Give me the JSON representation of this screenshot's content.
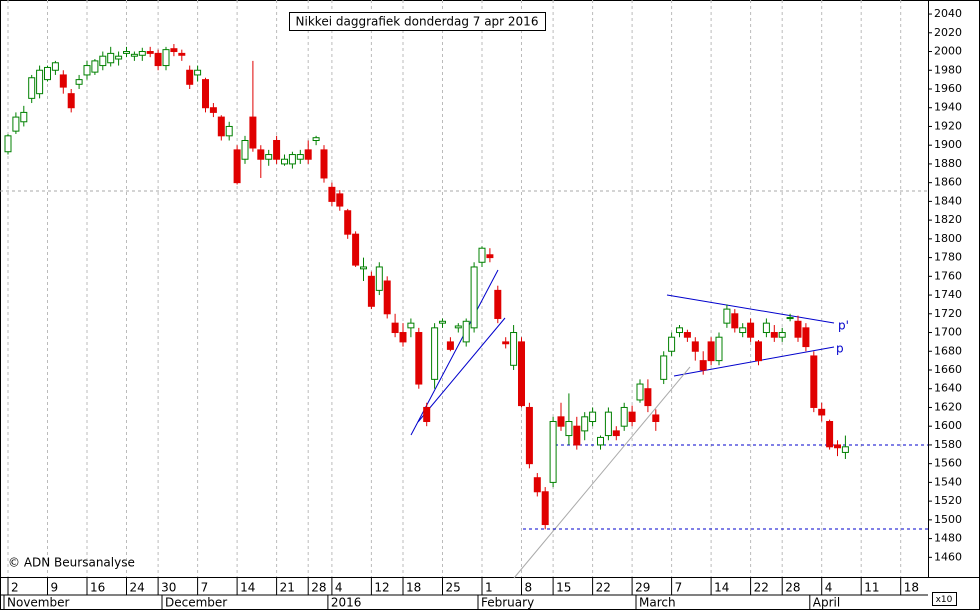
{
  "chart_data": {
    "type": "candlestick",
    "title": "Nikkei daggrafiek donderdag 7 apr 2016",
    "copyright": "© ADN Beursanalyse",
    "y_multiplier": "x10",
    "annotations": [
      "p'",
      "p"
    ],
    "up_color": "#008000",
    "down_color": "#e00000",
    "grid": true,
    "ylim": [
      1439,
      2055
    ],
    "yticks": [
      1460,
      1480,
      1500,
      1520,
      1540,
      1560,
      1580,
      1600,
      1620,
      1640,
      1660,
      1680,
      1700,
      1720,
      1740,
      1760,
      1780,
      1800,
      1820,
      1840,
      1860,
      1880,
      1900,
      1920,
      1940,
      1960,
      1980,
      2000,
      2020,
      2040
    ],
    "categories": [
      "2",
      null,
      null,
      null,
      null,
      "9",
      null,
      null,
      null,
      null,
      "16",
      null,
      null,
      null,
      null,
      "24",
      null,
      null,
      null,
      "30",
      null,
      null,
      null,
      null,
      "7",
      null,
      null,
      null,
      null,
      "14",
      null,
      null,
      null,
      null,
      "21",
      null,
      null,
      null,
      "28",
      null,
      null,
      "4",
      null,
      null,
      null,
      null,
      "12",
      null,
      null,
      null,
      "18",
      null,
      null,
      null,
      null,
      "25",
      null,
      null,
      null,
      null,
      "1",
      null,
      null,
      null,
      null,
      "8",
      null,
      null,
      null,
      "15",
      null,
      null,
      null,
      null,
      "22",
      null,
      null,
      null,
      null,
      "29",
      null,
      null,
      null,
      null,
      "7",
      null,
      null,
      null,
      null,
      "14",
      null,
      null,
      null,
      null,
      "22",
      null,
      null,
      null,
      "28",
      null,
      null,
      null,
      null,
      "4",
      null,
      null,
      null,
      null,
      "11",
      null,
      null,
      null,
      null,
      "18",
      null,
      null,
      null,
      null
    ],
    "months": [
      "November",
      null,
      null,
      null,
      null,
      null,
      null,
      null,
      null,
      null,
      null,
      null,
      null,
      null,
      null,
      null,
      null,
      null,
      null,
      null,
      "December",
      null,
      null,
      null,
      null,
      null,
      null,
      null,
      null,
      null,
      null,
      null,
      null,
      null,
      null,
      null,
      null,
      null,
      null,
      null,
      null,
      "2016",
      null,
      null,
      null,
      null,
      null,
      null,
      null,
      null,
      null,
      null,
      null,
      null,
      null,
      null,
      null,
      null,
      null,
      null,
      "February",
      null,
      null,
      null,
      null,
      null,
      null,
      null,
      null,
      null,
      null,
      null,
      null,
      null,
      null,
      null,
      null,
      null,
      null,
      null,
      "March",
      null,
      null,
      null,
      null,
      null,
      null,
      null,
      null,
      null,
      null,
      null,
      null,
      null,
      null,
      null,
      null,
      null,
      null,
      null,
      null,
      null,
      "April",
      null,
      null,
      null,
      null,
      null,
      null,
      null,
      null,
      null,
      null,
      null,
      null,
      null,
      null,
      null
    ],
    "open": [
      1893,
      1915,
      1925,
      1950,
      1955,
      1970,
      1980,
      1975,
      1955,
      1965,
      1975,
      1978,
      1985,
      1988,
      1992,
      1998,
      1995,
      1996,
      2000,
      1998,
      1985,
      2003,
      1998,
      1980,
      1975,
      1970,
      1940,
      1930,
      1910,
      1895,
      1885,
      1930,
      1895,
      1885,
      1905,
      1880,
      1880,
      1885,
      1895,
      1905,
      1895,
      1855,
      1848,
      1830,
      1805,
      1768,
      1760,
      1745,
      1755,
      1710,
      1700,
      1705,
      1700,
      1620,
      1650,
      1710,
      1690,
      1705,
      1690,
      1705,
      1775,
      1783,
      1745,
      1690,
      1665,
      1690,
      1620,
      1545,
      1530,
      1540,
      1610,
      1590,
      1600,
      1595,
      1605,
      1580,
      1590,
      1595,
      1600,
      1615,
      1628,
      1640,
      1612,
      1650,
      1680,
      1700,
      1700,
      1690,
      1670,
      1690,
      1670,
      1710,
      1720,
      1700,
      1710,
      1690,
      1700,
      1700,
      1695,
      1715,
      1712,
      1705,
      1675,
      1618,
      1605,
      1580,
      1572,
      null,
      null,
      null,
      null,
      null,
      null,
      null,
      null,
      null,
      null,
      null
    ],
    "high": [
      1912,
      1935,
      1942,
      1975,
      1985,
      1985,
      1990,
      1980,
      1960,
      1975,
      1990,
      1992,
      2000,
      2005,
      2000,
      2005,
      2000,
      2004,
      2005,
      2002,
      2005,
      2008,
      2002,
      1985,
      1985,
      1972,
      1945,
      1932,
      1925,
      1900,
      1910,
      1990,
      1900,
      1895,
      1910,
      1890,
      1893,
      1895,
      1905,
      1910,
      1900,
      1860,
      1852,
      1832,
      1808,
      1780,
      1765,
      1775,
      1760,
      1720,
      1710,
      1715,
      1705,
      1625,
      1710,
      1715,
      1695,
      1710,
      1715,
      1775,
      1792,
      1790,
      1750,
      1695,
      1708,
      1695,
      1625,
      1550,
      1535,
      1610,
      1625,
      1635,
      1610,
      1615,
      1620,
      1590,
      1620,
      1600,
      1625,
      1622,
      1650,
      1650,
      1618,
      1680,
      1700,
      1708,
      1703,
      1695,
      1680,
      1695,
      1700,
      1730,
      1725,
      1710,
      1715,
      1692,
      1715,
      1708,
      1705,
      1720,
      1718,
      1710,
      1680,
      1625,
      1607,
      1585,
      1590,
      null,
      null,
      null,
      null,
      null,
      null,
      null,
      null,
      null,
      null,
      null
    ],
    "low": [
      1890,
      1912,
      1920,
      1945,
      1950,
      1968,
      1975,
      1955,
      1935,
      1960,
      1970,
      1975,
      1980,
      1984,
      1985,
      1994,
      1990,
      1990,
      1994,
      1980,
      1980,
      1995,
      1990,
      1960,
      1968,
      1935,
      1930,
      1905,
      1905,
      1858,
      1880,
      1893,
      1865,
      1878,
      1880,
      1878,
      1875,
      1880,
      1880,
      1900,
      1860,
      1835,
      1830,
      1800,
      1770,
      1755,
      1725,
      1740,
      1715,
      1695,
      1685,
      1695,
      1640,
      1600,
      1640,
      1705,
      1680,
      1700,
      1685,
      1700,
      1770,
      1775,
      1710,
      1683,
      1660,
      1620,
      1555,
      1525,
      1490,
      1535,
      1595,
      1580,
      1575,
      1585,
      1600,
      1575,
      1585,
      1585,
      1595,
      1600,
      1625,
      1615,
      1595,
      1645,
      1675,
      1695,
      1690,
      1670,
      1655,
      1665,
      1665,
      1705,
      1700,
      1695,
      1690,
      1665,
      1695,
      1690,
      1690,
      1712,
      1690,
      1680,
      1615,
      1605,
      1575,
      1568,
      1565,
      null,
      null,
      null,
      null,
      null,
      null,
      null,
      null,
      null,
      null,
      null
    ],
    "close": [
      1910,
      1930,
      1935,
      1972,
      1980,
      1983,
      1988,
      1962,
      1940,
      1970,
      1985,
      1990,
      1995,
      1998,
      1995,
      2000,
      1997,
      2000,
      1998,
      1985,
      2002,
      2000,
      1996,
      1965,
      1980,
      1940,
      1935,
      1910,
      1920,
      1860,
      1905,
      1897,
      1885,
      1890,
      1885,
      1885,
      1890,
      1890,
      1885,
      1908,
      1865,
      1840,
      1835,
      1805,
      1772,
      1770,
      1728,
      1770,
      1720,
      1700,
      1690,
      1710,
      1645,
      1605,
      1705,
      1712,
      1682,
      1707,
      1712,
      1770,
      1790,
      1780,
      1715,
      1688,
      1700,
      1622,
      1560,
      1530,
      1495,
      1605,
      1600,
      1605,
      1580,
      1610,
      1615,
      1588,
      1615,
      1590,
      1620,
      1605,
      1645,
      1622,
      1605,
      1675,
      1695,
      1705,
      1695,
      1680,
      1660,
      1670,
      1695,
      1725,
      1705,
      1705,
      1695,
      1670,
      1710,
      1695,
      1700,
      1716,
      1695,
      1685,
      1620,
      1612,
      1578,
      1577,
      1578,
      null,
      null,
      null,
      null,
      null,
      null,
      null,
      null,
      null,
      null,
      null
    ]
  }
}
